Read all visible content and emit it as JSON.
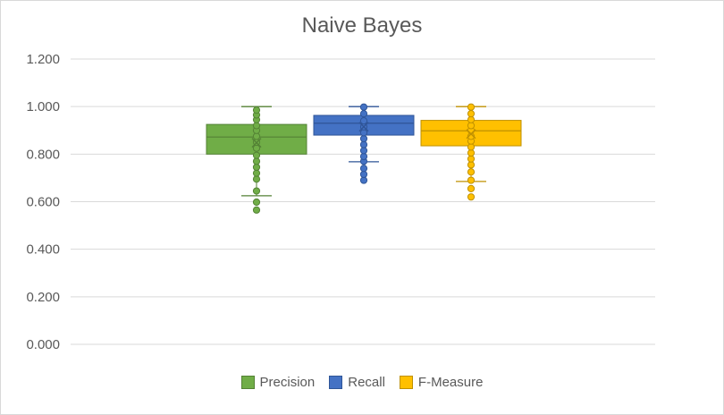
{
  "chart_data": {
    "type": "box",
    "title": "Naive Bayes",
    "xlabel": "",
    "ylabel": "",
    "ylim": [
      0,
      1.2
    ],
    "y_ticks": [
      "0.000",
      "0.200",
      "0.400",
      "0.600",
      "0.800",
      "1.000",
      "1.200"
    ],
    "grid": true,
    "legend_position": "bottom",
    "series": [
      {
        "name": "Precision",
        "color": "#70ad47",
        "stroke": "#548235",
        "whisker_low": 0.625,
        "q1": 0.8,
        "median": 0.872,
        "q3": 0.925,
        "whisker_high": 1.0,
        "mean": 0.848,
        "outliers": [
          0.565,
          0.598,
          0.645,
          0.695,
          0.72,
          0.745,
          0.77,
          0.795,
          0.825,
          0.85,
          0.875,
          0.9,
          0.92,
          0.945,
          0.965,
          0.985
        ]
      },
      {
        "name": "Recall",
        "color": "#4472c4",
        "stroke": "#2f5597",
        "whisker_low": 0.768,
        "q1": 0.88,
        "median": 0.93,
        "q3": 0.963,
        "whisker_high": 1.0,
        "mean": 0.915,
        "outliers": [
          0.69,
          0.715,
          0.74,
          0.77,
          0.79,
          0.815,
          0.84,
          0.865,
          0.89,
          0.915,
          0.94,
          0.97,
          0.998
        ]
      },
      {
        "name": "F-Measure",
        "color": "#ffc000",
        "stroke": "#bf9000",
        "whisker_low": 0.685,
        "q1": 0.835,
        "median": 0.898,
        "q3": 0.942,
        "whisker_high": 1.0,
        "mean": 0.885,
        "outliers": [
          0.62,
          0.655,
          0.69,
          0.725,
          0.755,
          0.78,
          0.805,
          0.83,
          0.855,
          0.875,
          0.9,
          0.92,
          0.945,
          0.97,
          0.998
        ]
      }
    ]
  }
}
